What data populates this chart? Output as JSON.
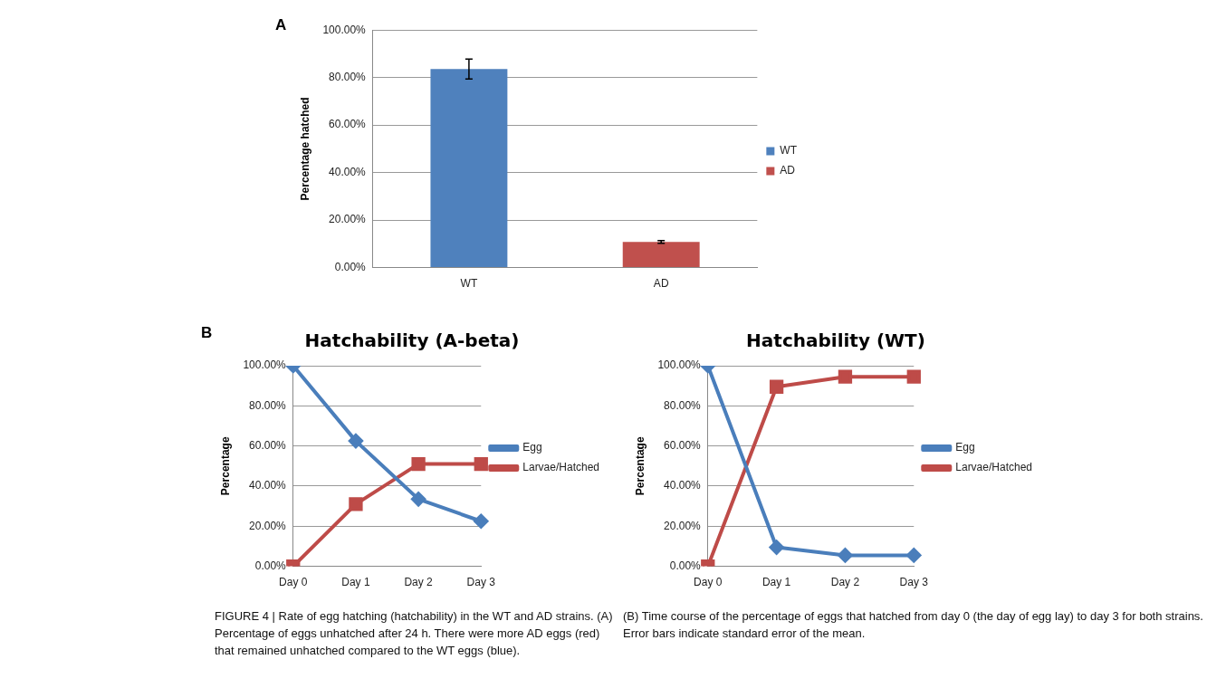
{
  "chart_data": [
    {
      "type": "bar",
      "ylabel": "Percentage hatched",
      "categories": [
        "WT",
        "AD"
      ],
      "series": [
        {
          "name": "WT",
          "color": "#4f81bd",
          "values": [
            83.6,
            null
          ],
          "errors": [
            4.2,
            null
          ]
        },
        {
          "name": "AD",
          "color": "#c0504d",
          "values": [
            null,
            10.8
          ],
          "errors": [
            null,
            0.6
          ]
        }
      ],
      "ylim": [
        0,
        100
      ],
      "yticks": [
        {
          "value": 0,
          "label": "0.00%"
        },
        {
          "value": 20,
          "label": "20.00%"
        },
        {
          "value": 40,
          "label": "40.00%"
        },
        {
          "value": 60,
          "label": "60.00%"
        },
        {
          "value": 80,
          "label": "80.00%"
        },
        {
          "value": 100,
          "label": "100.00%"
        }
      ],
      "grid": "y",
      "legend": "right",
      "annotations": [
        "A",
        "FIGURE 4 | Rate of egg hatching (hatchability) in the WT and AD strains. (A) Percentage of eggs unhatched after 24 h. There were more AD eggs (red) that remained unhatched compared to the WT eggs (blue)."
      ]
    },
    {
      "type": "line",
      "title": "Hatchability (A-beta)",
      "ylabel": "Percentage",
      "categories": [
        "Day 0",
        "Day 1",
        "Day 2",
        "Day 3"
      ],
      "series": [
        {
          "name": "Egg",
          "color": "#4a7ebb",
          "marker": "diamond",
          "values": [
            100,
            62.5,
            33.5,
            22.5
          ]
        },
        {
          "name": "Larvae/Hatched",
          "color": "#be4b48",
          "marker": "square",
          "values": [
            0,
            31,
            51,
            51
          ]
        }
      ],
      "ylim": [
        0,
        100
      ],
      "yticks": [
        {
          "value": 0,
          "label": "0.00%"
        },
        {
          "value": 20,
          "label": "20.00%"
        },
        {
          "value": 40,
          "label": "40.00%"
        },
        {
          "value": 60,
          "label": "60.00%"
        },
        {
          "value": 80,
          "label": "80.00%"
        },
        {
          "value": 100,
          "label": "100.00%"
        }
      ],
      "grid": "y",
      "legend": "right",
      "annotations": [
        "B",
        "(B) Time course of the percentage of eggs that hatched from day 0 (the day of egg lay) to day 3 for both strains. Error bars indicate standard error of the mean."
      ]
    },
    {
      "type": "line",
      "title": "Hatchability (WT)",
      "ylabel": "Percentage",
      "categories": [
        "Day 0",
        "Day 1",
        "Day 2",
        "Day 3"
      ],
      "series": [
        {
          "name": "Egg",
          "color": "#4a7ebb",
          "marker": "diamond",
          "values": [
            100,
            9.5,
            5.5,
            5.5
          ]
        },
        {
          "name": "Larvae/Hatched",
          "color": "#be4b48",
          "marker": "square",
          "values": [
            0,
            89.5,
            94.5,
            94.5
          ]
        }
      ],
      "ylim": [
        0,
        100
      ],
      "yticks": [
        {
          "value": 0,
          "label": "0.00%"
        },
        {
          "value": 20,
          "label": "20.00%"
        },
        {
          "value": 40,
          "label": "40.00%"
        },
        {
          "value": 60,
          "label": "60.00%"
        },
        {
          "value": 80,
          "label": "80.00%"
        },
        {
          "value": 100,
          "label": "100.00%"
        }
      ],
      "grid": "y",
      "legend": "right"
    }
  ]
}
